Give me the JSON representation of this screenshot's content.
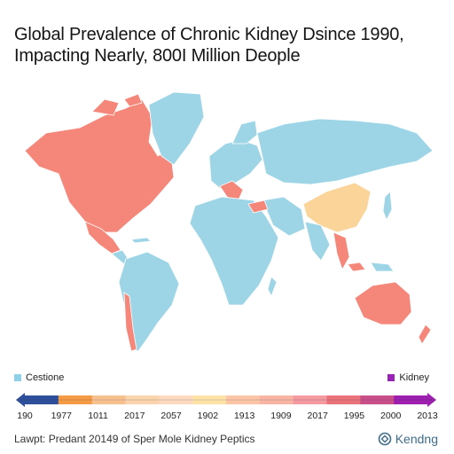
{
  "title": {
    "line1": "Global Prevalence of Chronic Kidney Dsince 1990,",
    "line2": "Impacting Nearly, 800I Million Deople"
  },
  "legend": {
    "left_label": "Cestione",
    "left_color": "#8fd0e6",
    "right_label": "Kidney",
    "right_color": "#9b22b8"
  },
  "scale": {
    "ticks": [
      "190",
      "1977",
      "1011",
      "2017",
      "2057",
      "1902",
      "1913",
      "1909",
      "2017",
      "1995",
      "2000",
      "2013"
    ],
    "segment_colors": [
      "#2e4f9c",
      "#f59a45",
      "#f7c08f",
      "#f9d4ac",
      "#fcd9bf",
      "#fde3a8",
      "#fcc5a6",
      "#f8b5a3",
      "#f49aa0",
      "#e9727b",
      "#c94f8b",
      "#9c1fb0"
    ]
  },
  "map_colors": {
    "base": "#9dd5e7",
    "high": "#f4877a",
    "mid": "#fbd49a",
    "ocean": "#ffffff"
  },
  "footer": {
    "source": "Lawpt: Predant 20149 of Sper Mole Kidney Peptics",
    "brand": "Kendng"
  }
}
